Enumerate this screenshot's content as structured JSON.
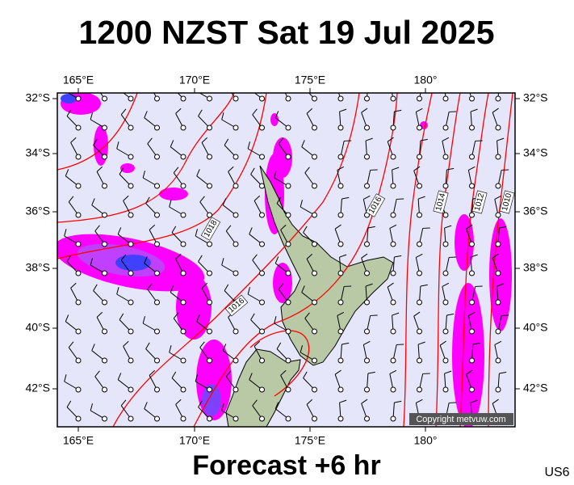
{
  "header": {
    "title": "1200 NZST Sat 19 Jul 2025"
  },
  "footer": {
    "forecast": "Forecast +6 hr",
    "code": "US6",
    "copyright": "Copyright metvuw.com"
  },
  "map": {
    "lon_labels": [
      "165°E",
      "170°E",
      "175°E",
      "180°"
    ],
    "lat_labels": [
      "32°S",
      "34°S",
      "36°S",
      "38°S",
      "40°S",
      "42°S"
    ],
    "isobar_labels": [
      "1018",
      "1016",
      "1016",
      "1014",
      "1012",
      "1010"
    ]
  }
}
